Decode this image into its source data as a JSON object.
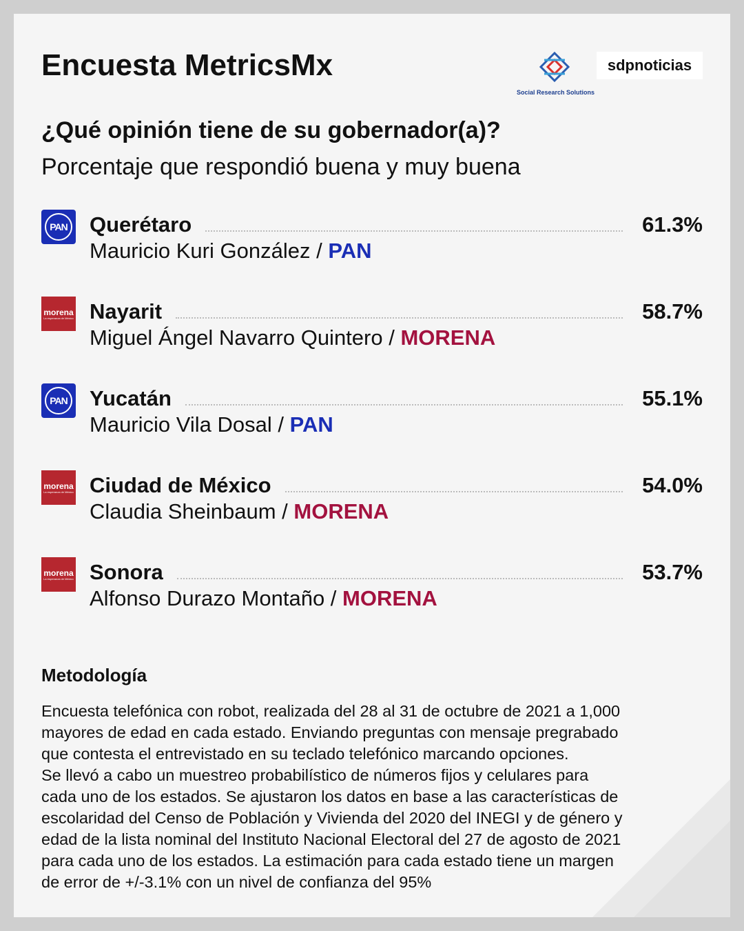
{
  "header": {
    "title": "Encuesta MetricsMx",
    "logo_research": "Social Research Solutions",
    "logo_news": "sdpnoticias"
  },
  "question": "¿Qué opinión tiene de su gobernador(a)?",
  "subtitle": "Porcentaje que respondió buena y muy buena",
  "rows": [
    {
      "state": "Querétaro",
      "governor": "Mauricio Kuri González / ",
      "party": "PAN",
      "percent": "61.3%"
    },
    {
      "state": "Nayarit",
      "governor": "Miguel Ángel Navarro Quintero / ",
      "party": "MORENA",
      "percent": "58.7%",
      "logo_text": "morena",
      "logo_subtext": "La esperanza de México"
    },
    {
      "state": "Yucatán",
      "governor": "Mauricio Vila Dosal / ",
      "party": "PAN",
      "percent": "55.1%"
    },
    {
      "state": "Ciudad de México",
      "governor": "Claudia Sheinbaum / ",
      "party": "MORENA",
      "percent": "54.0%",
      "logo_text": "morena",
      "logo_subtext": "La esperanza de México"
    },
    {
      "state": "Sonora",
      "governor": "Alfonso Durazo Montaño / ",
      "party": "MORENA",
      "percent": "53.7%",
      "logo_text": "morena",
      "logo_subtext": "La esperanza de México"
    }
  ],
  "methodology": {
    "title": "Metodología",
    "lines": [
      "Encuesta telefónica con robot, realizada del 28 al 31 de octubre de 2021 a 1,000",
      "mayores de edad en cada estado. Enviando preguntas con mensaje pregrabado",
      "que contesta el entrevistado en su teclado telefónico marcando opciones.",
      "Se llevó a cabo un muestreo probabilístico de números fijos y celulares para",
      "cada uno de los estados. Se ajustaron los datos en base a las características de",
      "escolaridad del Censo de Población y Vivienda del 2020 del INEGI y de género y",
      "edad de la lista nominal del Instituto Nacional Electoral del 27 de agosto de 2021",
      "para cada uno de los estados. La estimación para cada estado tiene un margen",
      "de error de +/-3.1% con un nivel de confianza del 95%"
    ]
  }
}
